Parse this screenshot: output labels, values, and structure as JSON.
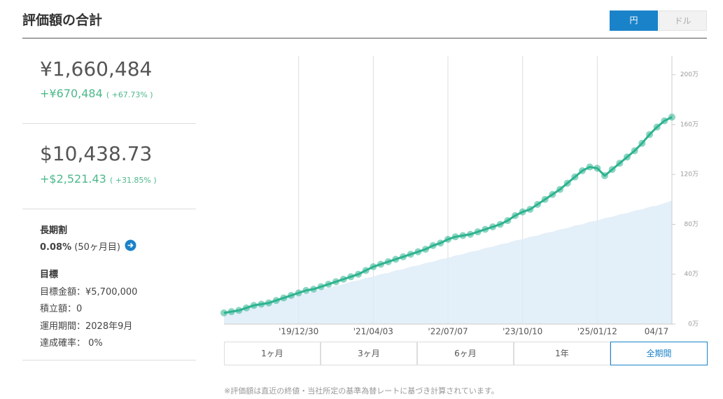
{
  "header": {
    "title": "評価額の合計",
    "currency_toggle": [
      "円",
      "ドル"
    ]
  },
  "summary": {
    "yen": {
      "value": "¥1,660,484",
      "gain": "+¥670,484",
      "gain_pct": "( +67.73% )"
    },
    "usd": {
      "value": "$10,438.73",
      "gain": "+$2,521.43",
      "gain_pct": "( +31.85% )"
    }
  },
  "discount": {
    "title": "長期割",
    "rate": "0.08%",
    "months": "(50ヶ月目)"
  },
  "goal": {
    "title": "目標",
    "items": [
      "目標金額：¥5,700,000",
      "積立額：0",
      "運用期間：2028年9月",
      "達成確率： 0%"
    ]
  },
  "chart_data": {
    "type": "line",
    "categories": [
      null,
      null,
      null,
      null,
      null,
      null,
      null,
      null,
      null,
      null,
      "'19/12/30",
      null,
      null,
      null,
      null,
      null,
      null,
      null,
      null,
      null,
      "'21/04/03",
      null,
      null,
      null,
      null,
      null,
      null,
      null,
      null,
      null,
      "'22/07/07",
      null,
      null,
      null,
      null,
      null,
      null,
      null,
      null,
      null,
      "'23/10/10",
      null,
      null,
      null,
      null,
      null,
      null,
      null,
      null,
      null,
      "'25/01/12",
      null,
      null,
      null,
      null,
      null,
      null,
      null,
      null,
      null,
      "04/17"
    ],
    "series": [
      {
        "color": "#2db38f",
        "values": [
          9,
          10,
          11,
          13,
          15,
          16,
          17,
          19,
          21,
          23,
          25,
          27,
          28,
          30,
          32,
          34,
          36,
          38,
          40,
          43,
          46,
          48,
          50,
          52,
          54,
          56,
          58,
          60,
          63,
          65,
          68,
          70,
          71,
          72,
          74,
          76,
          78,
          80,
          83,
          87,
          90,
          92,
          96,
          100,
          104,
          108,
          113,
          118,
          123,
          126,
          125,
          119,
          124,
          129,
          134,
          139,
          145,
          152,
          158,
          163,
          166
        ]
      },
      {
        "color": "#dcebf7",
        "values": [
          8,
          10,
          11,
          13,
          14,
          16,
          17,
          19,
          20,
          22,
          23,
          25,
          26,
          28,
          29,
          31,
          32,
          34,
          35,
          37,
          38,
          40,
          41,
          43,
          44,
          46,
          47,
          49,
          50,
          52,
          53,
          55,
          56,
          58,
          59,
          61,
          62,
          64,
          65,
          67,
          68,
          70,
          71,
          73,
          74,
          76,
          77,
          79,
          80,
          82,
          83,
          85,
          86,
          88,
          89,
          91,
          92,
          94,
          95,
          97,
          99
        ]
      }
    ],
    "ylim": [
      0,
      215
    ],
    "yticks": [
      {
        "value": 0,
        "label": "0万"
      },
      {
        "value": 40,
        "label": "40万"
      },
      {
        "value": 80,
        "label": "80万"
      },
      {
        "value": 120,
        "label": "120万"
      },
      {
        "value": 160,
        "label": "160万"
      },
      {
        "value": 200,
        "label": "200万"
      }
    ]
  },
  "periods": [
    "1ヶ月",
    "3ヶ月",
    "6ヶ月",
    "1年",
    "全期間"
  ],
  "footnote": "※評価額は直近の終値・当社所定の基準為替レートに基づき計算されています。"
}
